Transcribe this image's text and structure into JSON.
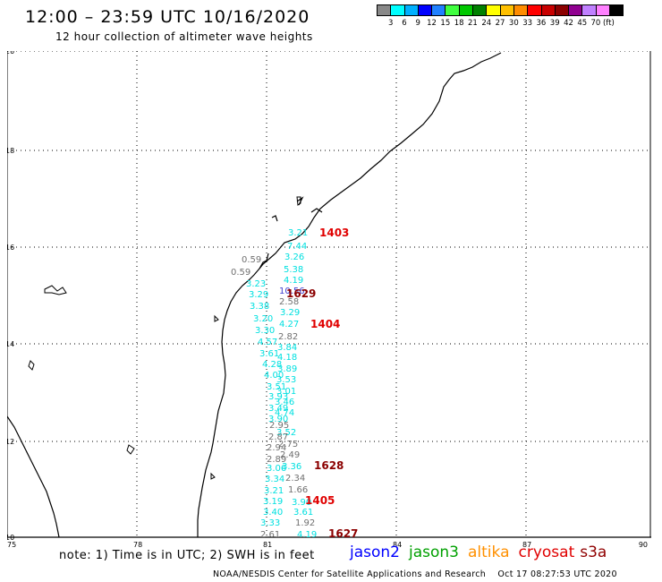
{
  "header": {
    "title": "12:00 – 23:59 UTC 10/16/2020",
    "subtitle": "12 hour collection of altimeter wave heights"
  },
  "legend": {
    "swatch_colors": [
      "#888888",
      "#00ffff",
      "#00b0ff",
      "#0000ff",
      "#2080ff",
      "#40ff40",
      "#00c800",
      "#008000",
      "#ffff00",
      "#ffc000",
      "#ff8c00",
      "#ff0000",
      "#c80000",
      "#8b0000",
      "#900090",
      "#c080ff",
      "#ff80ff",
      "#000000"
    ],
    "labels": [
      "3",
      "6",
      "9",
      "12",
      "15",
      "18",
      "21",
      "24",
      "27",
      "30",
      "33",
      "36",
      "39",
      "42",
      "45",
      "70 (ft)"
    ]
  },
  "map": {
    "x_ticks": [
      "75",
      "78",
      "81",
      "84",
      "87",
      "90"
    ],
    "y_ticks": [
      "20",
      "18",
      "16",
      "14",
      "12",
      "10"
    ],
    "track_color": "#00e0e0",
    "track_color_gray": "#707070",
    "cycle_labels": [
      {
        "text": "1403",
        "color": "#e00000"
      },
      {
        "text": "1629",
        "color": "#8b0000"
      },
      {
        "text": "1404",
        "color": "#e00000"
      },
      {
        "text": "1628",
        "color": "#8b0000"
      },
      {
        "text": "1405",
        "color": "#e00000"
      },
      {
        "text": "1627",
        "color": "#8b0000"
      }
    ],
    "wave_heights": [
      {
        "t": "3.21",
        "c": "c"
      },
      {
        "t": "7.44",
        "c": "c"
      },
      {
        "t": "0.59",
        "c": "g"
      },
      {
        "t": "3.26",
        "c": "c"
      },
      {
        "t": "0.59",
        "c": "g"
      },
      {
        "t": "5.38",
        "c": "c"
      },
      {
        "t": "3.23",
        "c": "c"
      },
      {
        "t": "4.19",
        "c": "c"
      },
      {
        "t": "3.29",
        "c": "c"
      },
      {
        "t": "10.56",
        "c": "b"
      },
      {
        "t": "2.58",
        "c": "g"
      },
      {
        "t": "3.38",
        "c": "c"
      },
      {
        "t": "3.29",
        "c": "c"
      },
      {
        "t": "3.20",
        "c": "c"
      },
      {
        "t": "4.27",
        "c": "c"
      },
      {
        "t": "3.30",
        "c": "c"
      },
      {
        "t": "2.82",
        "c": "g"
      },
      {
        "t": "4.57",
        "c": "c"
      },
      {
        "t": "3.84",
        "c": "c"
      },
      {
        "t": "3.61",
        "c": "c"
      },
      {
        "t": "4.18",
        "c": "c"
      },
      {
        "t": "4.28",
        "c": "c"
      },
      {
        "t": "3.89",
        "c": "c"
      },
      {
        "t": "4.00",
        "c": "c"
      },
      {
        "t": "3.53",
        "c": "c"
      },
      {
        "t": "3.51",
        "c": "c"
      },
      {
        "t": "3.01",
        "c": "c"
      },
      {
        "t": "3.93",
        "c": "c"
      },
      {
        "t": "3.46",
        "c": "c"
      },
      {
        "t": "3.49",
        "c": "c"
      },
      {
        "t": "4.74",
        "c": "c"
      },
      {
        "t": "3.90",
        "c": "c"
      },
      {
        "t": "2.95",
        "c": "g"
      },
      {
        "t": "3.52",
        "c": "c"
      },
      {
        "t": "2.87",
        "c": "g"
      },
      {
        "t": "2.75",
        "c": "g"
      },
      {
        "t": "2.94",
        "c": "g"
      },
      {
        "t": "2.49",
        "c": "g"
      },
      {
        "t": "2.89",
        "c": "g"
      },
      {
        "t": "3.06",
        "c": "c"
      },
      {
        "t": "3.36",
        "c": "c"
      },
      {
        "t": "3.34",
        "c": "c"
      },
      {
        "t": "2.34",
        "c": "g"
      },
      {
        "t": "3.21",
        "c": "c"
      },
      {
        "t": "1.66",
        "c": "g"
      },
      {
        "t": "3.19",
        "c": "c"
      },
      {
        "t": "3.90",
        "c": "c"
      },
      {
        "t": "3.40",
        "c": "c"
      },
      {
        "t": "3.61",
        "c": "c"
      },
      {
        "t": "3.33",
        "c": "c"
      },
      {
        "t": "1.92",
        "c": "g"
      },
      {
        "t": "2.61",
        "c": "g"
      },
      {
        "t": "4.19",
        "c": "c"
      }
    ]
  },
  "footer": {
    "notes": "note: 1) Time is in UTC; 2) SWH is in feet",
    "missions": [
      {
        "name": "jason2",
        "color": "#0000ff"
      },
      {
        "name": "jason3",
        "color": "#00a000"
      },
      {
        "name": "altika",
        "color": "#ff9000"
      },
      {
        "name": "cryosat",
        "color": "#e00000"
      },
      {
        "name": "s3a",
        "color": "#900000"
      }
    ],
    "credits": "NOAA/NESDIS Center for Satellite Applications and Research    Oct 17 08:27:53 UTC 2020"
  }
}
